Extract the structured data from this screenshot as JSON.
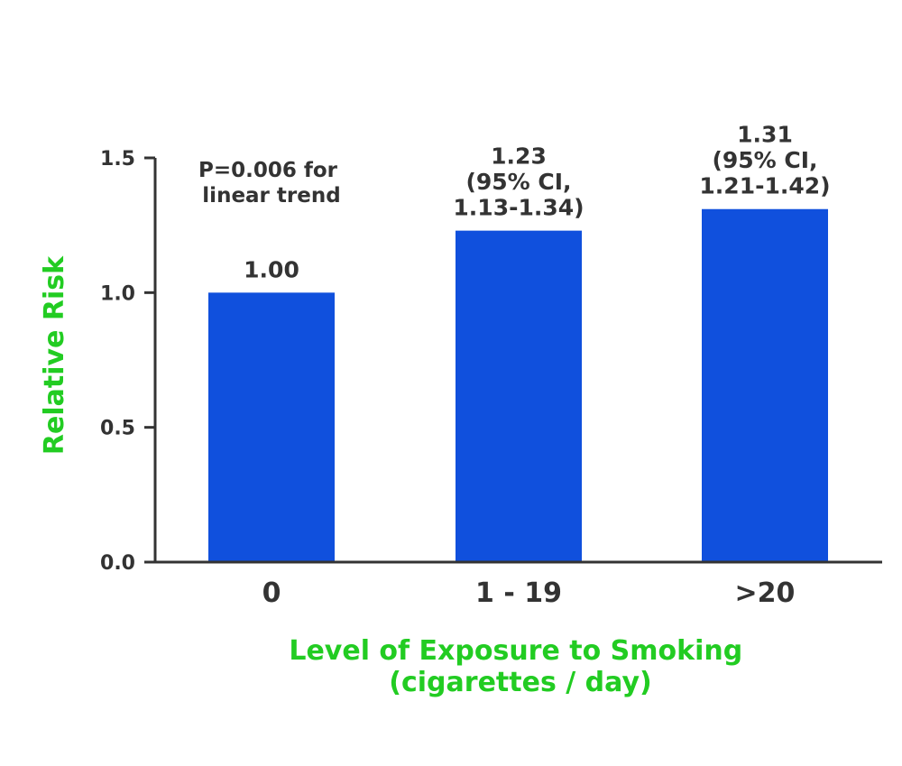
{
  "chart_data": {
    "type": "bar",
    "categories": [
      "0",
      "1 - 19",
      ">20"
    ],
    "values": [
      1.0,
      1.23,
      1.31
    ],
    "data_labels": [
      [
        "1.00"
      ],
      [
        "1.23",
        "(95% CI,",
        "1.13-1.34)"
      ],
      [
        "1.31",
        "(95% CI,",
        "1.21-1.42)"
      ]
    ],
    "annotation": [
      "P=0.006 for",
      "linear trend"
    ],
    "xlabel": [
      "Level of Exposure to Smoking",
      "(cigarettes / day)"
    ],
    "ylabel": "Relative Risk",
    "ylim": [
      0,
      1.5
    ],
    "yticks": [
      "0.0",
      "0.5",
      "1.0",
      "1.5"
    ],
    "grid": false,
    "colors": {
      "bar": "#1050dd",
      "axis_title": "#22cc22",
      "axis": "#333333",
      "text": "#333333"
    }
  }
}
